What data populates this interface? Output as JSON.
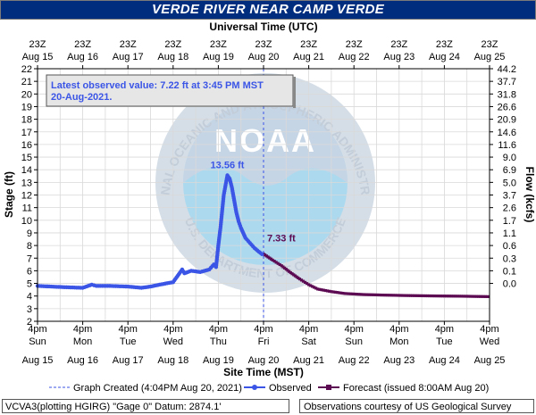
{
  "title": "VERDE RIVER NEAR CAMP VERDE",
  "chart_data": {
    "type": "line",
    "top_axis_label": "Universal Time (UTC)",
    "xlabel": "Site Time (MST)",
    "ylabel": "Stage (ft)",
    "y2label": "Flow (kcfs)",
    "ylim": [
      2,
      22
    ],
    "yticks": [
      2,
      3,
      4,
      5,
      6,
      7,
      8,
      9,
      10,
      11,
      12,
      13,
      14,
      15,
      16,
      17,
      18,
      19,
      20,
      21,
      22
    ],
    "flow_ticks": [
      {
        "stage": 22,
        "label": "44.2"
      },
      {
        "stage": 21,
        "label": "37.7"
      },
      {
        "stage": 20,
        "label": "31.8"
      },
      {
        "stage": 19,
        "label": "26.6"
      },
      {
        "stage": 18,
        "label": "20.9"
      },
      {
        "stage": 17,
        "label": "14.6"
      },
      {
        "stage": 16,
        "label": "11.6"
      },
      {
        "stage": 15,
        "label": "9.0"
      },
      {
        "stage": 14,
        "label": "6.9"
      },
      {
        "stage": 13,
        "label": "5.0"
      },
      {
        "stage": 12,
        "label": "3.7"
      },
      {
        "stage": 11,
        "label": "2.6"
      },
      {
        "stage": 10,
        "label": "1.7"
      },
      {
        "stage": 9,
        "label": "1.1"
      },
      {
        "stage": 8,
        "label": "0.6"
      },
      {
        "stage": 7,
        "label": "0.3"
      },
      {
        "stage": 6,
        "label": "0.1"
      },
      {
        "stage": 5,
        "label": "0.0"
      }
    ],
    "x_ticks_top": [
      {
        "line1": "23Z",
        "line2": "Aug 15"
      },
      {
        "line1": "23Z",
        "line2": "Aug 16"
      },
      {
        "line1": "23Z",
        "line2": "Aug 17"
      },
      {
        "line1": "23Z",
        "line2": "Aug 18"
      },
      {
        "line1": "23Z",
        "line2": "Aug 19"
      },
      {
        "line1": "23Z",
        "line2": "Aug 20"
      },
      {
        "line1": "23Z",
        "line2": "Aug 21"
      },
      {
        "line1": "23Z",
        "line2": "Aug 22"
      },
      {
        "line1": "23Z",
        "line2": "Aug 23"
      },
      {
        "line1": "23Z",
        "line2": "Aug 24"
      },
      {
        "line1": "23Z",
        "line2": "Aug 25"
      }
    ],
    "x_ticks_bottom": [
      {
        "line1": "4pm",
        "line2": "Sun",
        "line3": "Aug 15"
      },
      {
        "line1": "4pm",
        "line2": "Mon",
        "line3": "Aug 16"
      },
      {
        "line1": "4pm",
        "line2": "Tue",
        "line3": "Aug 17"
      },
      {
        "line1": "4pm",
        "line2": "Wed",
        "line3": "Aug 18"
      },
      {
        "line1": "4pm",
        "line2": "Thu",
        "line3": "Aug 19"
      },
      {
        "line1": "4pm",
        "line2": "Fri",
        "line3": "Aug 20"
      },
      {
        "line1": "4pm",
        "line2": "Sat",
        "line3": "Aug 21"
      },
      {
        "line1": "4pm",
        "line2": "Sun",
        "line3": "Aug 22"
      },
      {
        "line1": "4pm",
        "line2": "Mon",
        "line3": "Aug 23"
      },
      {
        "line1": "4pm",
        "line2": "Tue",
        "line3": "Aug 24"
      },
      {
        "line1": "4pm",
        "line2": "Wed",
        "line3": "Aug 25"
      }
    ],
    "series": [
      {
        "name": "Observed",
        "color": "#3b55e6",
        "x_days": [
          0,
          0.3,
          0.6,
          1.0,
          1.2,
          1.3,
          1.6,
          2.0,
          2.3,
          2.5,
          2.7,
          3.0,
          3.1,
          3.2,
          3.25,
          3.4,
          3.6,
          3.8,
          3.9,
          3.95,
          4.0,
          4.05,
          4.12,
          4.2,
          4.25,
          4.3,
          4.35,
          4.4,
          4.45,
          4.5,
          4.55,
          4.6,
          4.7,
          4.8,
          4.9,
          5.0
        ],
        "y": [
          4.8,
          4.75,
          4.7,
          4.65,
          4.9,
          4.8,
          4.8,
          4.75,
          4.65,
          4.75,
          4.9,
          5.1,
          5.6,
          6.1,
          5.8,
          6.0,
          5.9,
          6.1,
          6.5,
          6.3,
          8.0,
          9.5,
          12.0,
          13.56,
          13.3,
          12.6,
          11.6,
          10.6,
          9.9,
          9.4,
          9.0,
          8.6,
          8.2,
          7.8,
          7.5,
          7.22
        ]
      },
      {
        "name": "Forecast (issued 8:00AM Aug 20)",
        "color": "#5c0a52",
        "x_days": [
          5.0,
          5.2,
          5.4,
          5.6,
          5.8,
          6.0,
          6.2,
          6.5,
          6.8,
          7.2,
          7.6,
          8.0,
          8.5,
          9.0,
          9.5,
          10.0
        ],
        "y": [
          7.33,
          6.85,
          6.4,
          5.85,
          5.35,
          4.9,
          4.55,
          4.35,
          4.2,
          4.12,
          4.08,
          4.05,
          4.02,
          4.0,
          3.98,
          3.95
        ]
      }
    ],
    "annotations": {
      "peak_label": "13.56 ft",
      "peak_x_days": 4.2,
      "peak_stage": 13.56,
      "forecast_label": "7.33 ft",
      "forecast_x_days": 5.0,
      "forecast_stage": 7.33,
      "graph_created_x_days": 5.0
    },
    "latest_box": {
      "line1": "Latest observed value: 7.22 ft at 3:45 PM MST",
      "line2": "20-Aug-2021."
    },
    "watermark": {
      "text": "NATIONAL OCEANIC AND ATMOSPHERIC ADMINISTRATION",
      "bottom_text": "U.S. DEPARTMENT OF COMMERCE",
      "logo": "NOAA"
    },
    "legend": [
      {
        "label": "Graph Created (4:04PM Aug 20, 2021)",
        "style": "dashed",
        "color": "#3b55e6"
      },
      {
        "label": "Observed",
        "style": "dot-line",
        "color": "#3b55e6"
      },
      {
        "label": "Forecast (issued 8:00AM Aug 20)",
        "style": "square-line",
        "color": "#5c0a52"
      }
    ],
    "grid": true
  },
  "footer": {
    "left": "VCVA3(plotting HGIRG) \"Gage 0\" Datum:  2874.1'",
    "right": "Observations courtesy of US Geological Survey"
  }
}
